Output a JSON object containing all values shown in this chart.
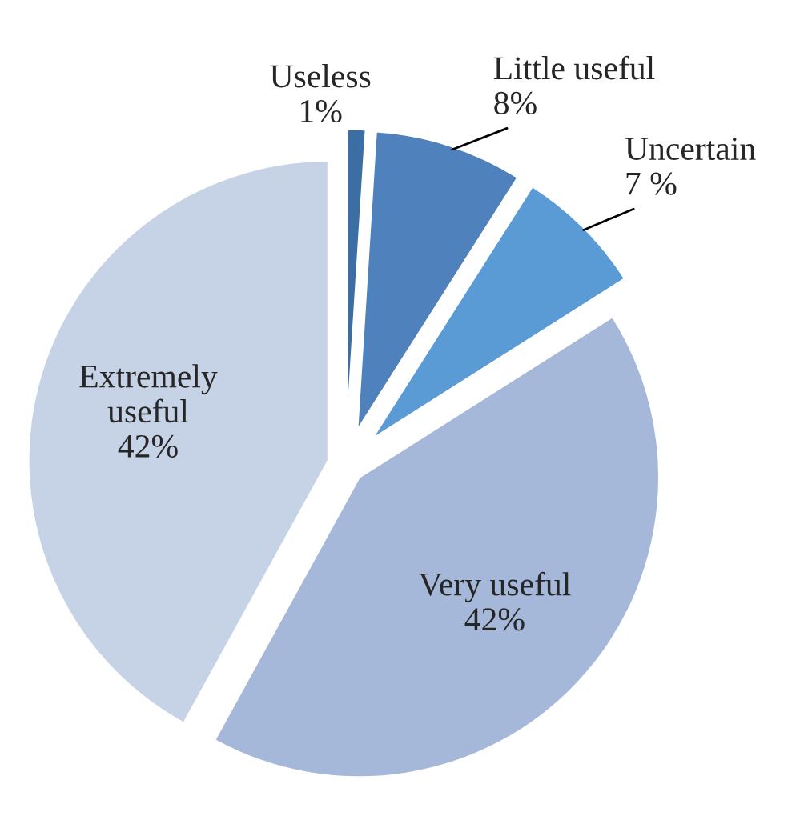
{
  "chart_data": {
    "type": "pie",
    "categories": [
      "Useless",
      "Little useful",
      "Uncertain",
      "Very useful",
      "Extremely useful"
    ],
    "values": [
      1,
      8,
      7,
      42,
      42
    ],
    "value_labels": [
      "1%",
      "8%",
      "7 %",
      "42%",
      "42%"
    ],
    "colors": [
      "#3c6ea6",
      "#4f81bd",
      "#5b9bd5",
      "#a5b8d9",
      "#c6d2e6"
    ],
    "legend": false
  }
}
